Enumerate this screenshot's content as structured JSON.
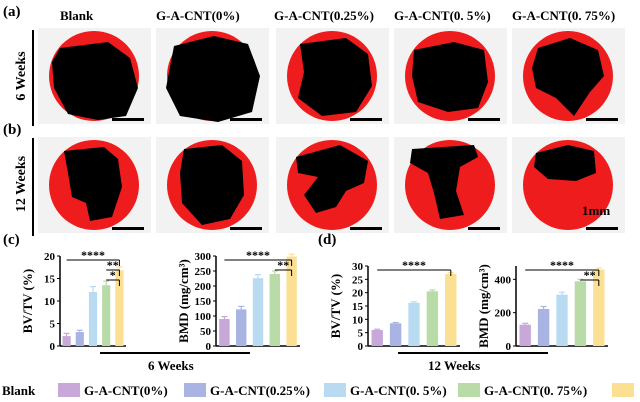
{
  "panel_labels": {
    "a": "(a)",
    "b": "(b)",
    "c": "(c)",
    "d": "(d)"
  },
  "groups": [
    "Blank",
    "G-A-CNT(0%)",
    "G-A-CNT(0.25%)",
    "G-A-CNT(0. 5%)",
    "G-A-CNT(0. 75%)"
  ],
  "row_labels": {
    "row1": "6 Weeks",
    "row2": "12 Weeks"
  },
  "scale_label": "1mm",
  "colors": {
    "blank": "#c7a8d8",
    "g0": "#a9b4e2",
    "g025": "#b9dbf1",
    "g05": "#b8dba8",
    "g075": "#fbdf93",
    "red": "#ee1c1c"
  },
  "legend": {
    "blank": "Blank",
    "g0": "G-A-CNT(0%)",
    "g025": "G-A-CNT(0.25%)",
    "g05": "G-A-CNT(0. 5%)",
    "g075": "G-A-CNT(0. 75%)"
  },
  "chart_data": [
    {
      "id": "c_bvtv",
      "type": "bar",
      "period": "6 Weeks",
      "ylabel": "BV/TV (%)",
      "ylim": [
        0,
        20
      ],
      "yticks": [
        "0",
        "5",
        "10",
        "15",
        "20"
      ],
      "values": [
        2.2,
        3.1,
        12.0,
        13.5,
        16.8
      ],
      "errors": [
        0.6,
        0.4,
        1.2,
        0.9,
        0.8
      ],
      "significance": [
        "****",
        "**",
        "*"
      ]
    },
    {
      "id": "c_bmd",
      "type": "bar",
      "period": "6 Weeks",
      "ylabel": "BMD (mg/cm³)",
      "ylim": [
        0,
        300
      ],
      "yticks": [
        "0",
        "50",
        "100",
        "150",
        "200",
        "250",
        "300"
      ],
      "values": [
        90,
        122,
        226,
        240,
        298
      ],
      "errors": [
        8,
        10,
        12,
        10,
        8
      ],
      "significance": [
        "****",
        "**"
      ]
    },
    {
      "id": "d_bvtv",
      "type": "bar",
      "period": "12 Weeks",
      "ylabel": "BV/TV (%)",
      "ylim": [
        0,
        30
      ],
      "yticks": [
        "0",
        "5",
        "10",
        "15",
        "20",
        "25",
        "30"
      ],
      "values": [
        6.0,
        8.5,
        16.2,
        20.5,
        27.0
      ],
      "errors": [
        0.3,
        0.3,
        0.4,
        0.5,
        0.5
      ],
      "significance": [
        "****"
      ]
    },
    {
      "id": "d_bmd",
      "type": "bar",
      "period": "12 Weeks",
      "ylabel": "BMD (mg/cm³)",
      "ylim": [
        0,
        480
      ],
      "yticks": [
        "0",
        "200",
        "400"
      ],
      "values": [
        128,
        222,
        308,
        388,
        458
      ],
      "errors": [
        8,
        15,
        15,
        12,
        10
      ],
      "significance": [
        "****",
        "**"
      ]
    }
  ]
}
